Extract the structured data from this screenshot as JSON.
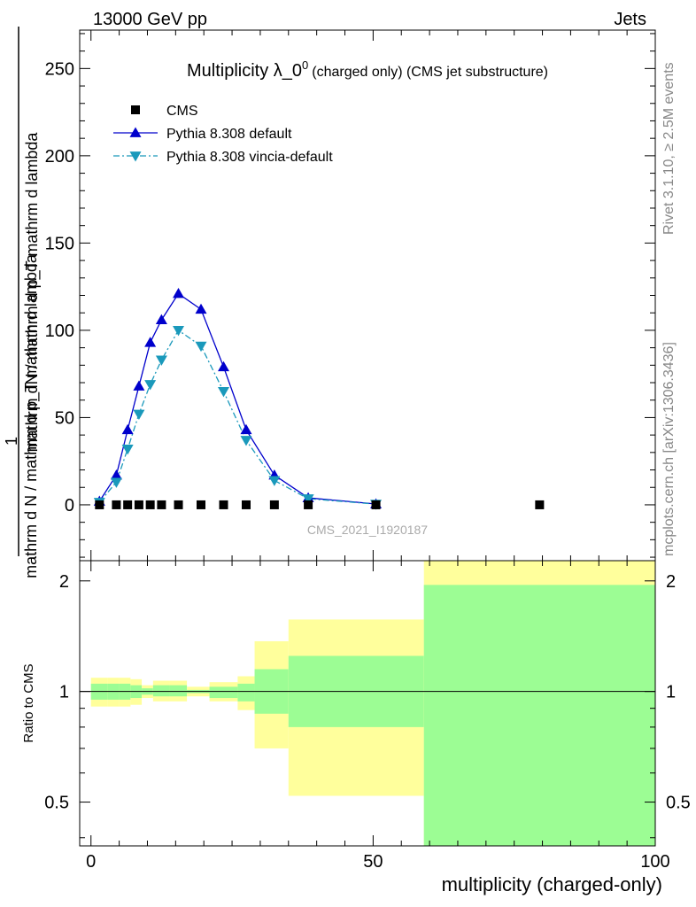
{
  "header": {
    "left": "13000 GeV pp",
    "right": "Jets"
  },
  "side": {
    "rivet": "Rivet 3.1.10, ≥ 2.5M events",
    "mcplots": "mcplots.cern.ch [arXiv:1306.3436]"
  },
  "colors": {
    "cms": "#000000",
    "pythia_default": "#0000cc",
    "vincia": "#1a99bb",
    "band_inner": "#9cfd94",
    "band_outer": "#ffff9c"
  },
  "chart_data": [
    {
      "type": "line",
      "title": "Multiplicity λ_0",
      "title_sup": "0",
      "title_suffix": "(charged only) (CMS jet substructure)",
      "watermark": "CMS_2021_I1920187",
      "ylabel_top": "1",
      "ylabel_num": "mathrm dN / mathrm d p_T mathrm d lambda",
      "ylabel_den": "mathrm d N / mathrm d p_T mathrm d lambda",
      "xlim": [
        -2,
        100
      ],
      "ylim": [
        -32,
        272
      ],
      "yticks": [
        0,
        50,
        100,
        150,
        200,
        250
      ],
      "grid": false,
      "legend_position": "top-left",
      "series": [
        {
          "name": "CMS",
          "marker": "square",
          "x": [
            1.5,
            4.5,
            6.5,
            8.5,
            10.5,
            12.5,
            15.5,
            19.5,
            23.5,
            27.5,
            32.5,
            38.5,
            50.5,
            79.5
          ],
          "y": [
            0,
            0,
            0,
            0,
            0,
            0,
            0,
            0,
            0,
            0,
            0,
            0,
            0,
            0
          ]
        },
        {
          "name": "Pythia 8.308 default",
          "marker": "triangle-up",
          "line": "solid",
          "x": [
            1.5,
            4.5,
            6.5,
            8.5,
            10.5,
            12.5,
            15.5,
            19.5,
            23.5,
            27.5,
            32.5,
            38.5,
            50.5
          ],
          "y": [
            2,
            17,
            43,
            68,
            93,
            106,
            121,
            112,
            79,
            43,
            17,
            4,
            0.5
          ]
        },
        {
          "name": "Pythia 8.308 vincia-default",
          "marker": "triangle-down",
          "line": "dashdot",
          "x": [
            1.5,
            4.5,
            6.5,
            8.5,
            10.5,
            12.5,
            15.5,
            19.5,
            23.5,
            27.5,
            32.5,
            38.5,
            50.5
          ],
          "y": [
            1.5,
            13,
            32,
            52,
            69,
            83,
            100,
            91,
            65,
            37,
            14,
            3.5,
            0.4
          ]
        }
      ]
    },
    {
      "type": "area",
      "xlabel": "multiplicity (charged-only)",
      "ylabel": "Ratio to CMS",
      "xlim": [
        -2,
        100
      ],
      "ylim": [
        0.38,
        2.27
      ],
      "yticks": [
        0.5,
        1,
        2
      ],
      "xticks": [
        0,
        50,
        100
      ],
      "reference_line": 1,
      "bands": [
        {
          "x0": 0,
          "x1": 3,
          "inner": [
            0.95,
            1.05
          ],
          "outer": [
            0.91,
            1.09
          ]
        },
        {
          "x0": 3,
          "x1": 5,
          "inner": [
            0.95,
            1.05
          ],
          "outer": [
            0.91,
            1.09
          ]
        },
        {
          "x0": 5,
          "x1": 7,
          "inner": [
            0.95,
            1.05
          ],
          "outer": [
            0.91,
            1.09
          ]
        },
        {
          "x0": 7,
          "x1": 9,
          "inner": [
            0.96,
            1.04
          ],
          "outer": [
            0.92,
            1.08
          ]
        },
        {
          "x0": 9,
          "x1": 11,
          "inner": [
            0.98,
            1.02
          ],
          "outer": [
            0.96,
            1.04
          ]
        },
        {
          "x0": 11,
          "x1": 14,
          "inner": [
            0.97,
            1.04
          ],
          "outer": [
            0.94,
            1.07
          ]
        },
        {
          "x0": 14,
          "x1": 17,
          "inner": [
            0.97,
            1.04
          ],
          "outer": [
            0.94,
            1.07
          ]
        },
        {
          "x0": 17,
          "x1": 21,
          "inner": [
            0.99,
            1.01
          ],
          "outer": [
            0.97,
            1.03
          ]
        },
        {
          "x0": 21,
          "x1": 26,
          "inner": [
            0.96,
            1.03
          ],
          "outer": [
            0.94,
            1.06
          ]
        },
        {
          "x0": 26,
          "x1": 29,
          "inner": [
            0.94,
            1.05
          ],
          "outer": [
            0.89,
            1.1
          ]
        },
        {
          "x0": 29,
          "x1": 35,
          "inner": [
            0.87,
            1.15
          ],
          "outer": [
            0.7,
            1.37
          ]
        },
        {
          "x0": 35,
          "x1": 59,
          "inner": [
            0.8,
            1.25
          ],
          "outer": [
            0.52,
            1.57
          ]
        },
        {
          "x0": 59,
          "x1": 100,
          "inner": [
            0.38,
            1.95
          ],
          "outer": [
            0.38,
            2.27
          ]
        }
      ]
    }
  ]
}
